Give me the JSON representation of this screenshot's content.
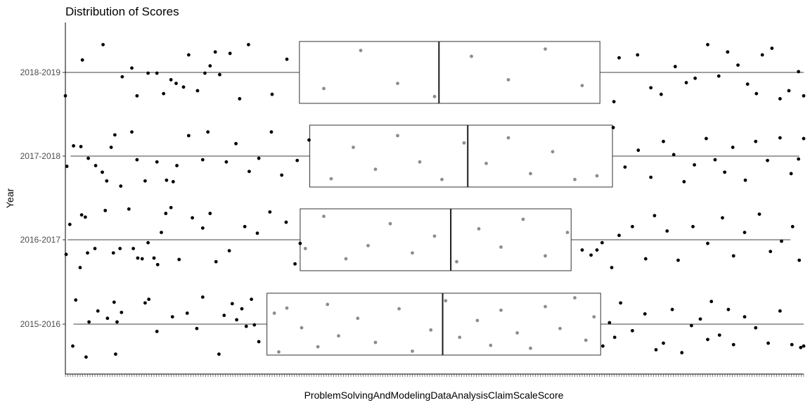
{
  "chart_data": {
    "type": "boxplot",
    "title": "Distribution of Scores",
    "xlabel": "ProblemSolvingAndModelingDataAnalysisClaimScaleScore",
    "ylabel": "Year",
    "orientation": "horizontal",
    "grid": false,
    "x_ticks_unreadable": true,
    "categories": [
      "2015-2016",
      "2016-2017",
      "2017-2018",
      "2018-2019"
    ],
    "x_range": [
      0,
      1000
    ],
    "boxes": [
      {
        "category": "2015-2016",
        "whisker_low": 11,
        "q1": 273,
        "median": 511,
        "q3": 725,
        "whisker_high": 1000
      },
      {
        "category": "2016-2017",
        "whisker_low": 3,
        "q1": 318,
        "median": 522,
        "q3": 685,
        "whisker_high": 982
      },
      {
        "category": "2017-2018",
        "whisker_low": 7,
        "q1": 331,
        "median": 545,
        "q3": 741,
        "whisker_high": 994
      },
      {
        "category": "2018-2019",
        "whisker_low": 0,
        "q1": 317,
        "median": 506,
        "q3": 724,
        "whisker_high": 1000
      }
    ],
    "points": [
      {
        "category": "2015-2016",
        "x": [
          10,
          14,
          28,
          32,
          44,
          57,
          66,
          68,
          70,
          76,
          108,
          113,
          124,
          145,
          165,
          178,
          186,
          208,
          215,
          226,
          232,
          239,
          245,
          252,
          256,
          262,
          283,
          289,
          300,
          320,
          342,
          355,
          370,
          396,
          420,
          452,
          470,
          495,
          515,
          534,
          558,
          576,
          590,
          612,
          630,
          650,
          670,
          690,
          705,
          716,
          728,
          737,
          744,
          752,
          768,
          785,
          800,
          810,
          822,
          835,
          848,
          860,
          870,
          875,
          886,
          898,
          905,
          920,
          935,
          952,
          968,
          984,
          996,
          1000
        ],
        "dy": [
          0.3,
          -0.33,
          0.45,
          -0.03,
          -0.18,
          -0.08,
          -0.3,
          0.41,
          -0.03,
          -0.16,
          -0.29,
          -0.34,
          0.1,
          -0.1,
          -0.15,
          0.06,
          -0.37,
          0.41,
          -0.12,
          -0.28,
          -0.06,
          -0.21,
          0.03,
          -0.34,
          0.01,
          0.24,
          -0.15,
          0.38,
          -0.22,
          0.05,
          0.31,
          -0.27,
          0.16,
          -0.08,
          0.25,
          -0.21,
          0.37,
          0.08,
          -0.32,
          0.18,
          -0.05,
          0.29,
          -0.19,
          0.12,
          0.33,
          -0.24,
          0.06,
          -0.36,
          0.22,
          -0.1,
          0.3,
          -0.02,
          0.18,
          -0.29,
          0.09,
          -0.14,
          0.35,
          0.26,
          -0.2,
          0.39,
          0.02,
          -0.07,
          0.21,
          -0.31,
          0.15,
          -0.2,
          0.28,
          -0.1,
          0.05,
          0.26,
          -0.18,
          0.28,
          0.32,
          0.3
        ]
      },
      {
        "category": "2016-2017",
        "x": [
          1,
          6,
          20,
          22,
          27,
          30,
          40,
          54,
          65,
          74,
          86,
          92,
          98,
          104,
          112,
          120,
          125,
          130,
          136,
          143,
          154,
          172,
          186,
          196,
          204,
          222,
          243,
          260,
          277,
          299,
          311,
          318,
          325,
          350,
          380,
          410,
          440,
          470,
          500,
          530,
          560,
          590,
          620,
          650,
          680,
          700,
          712,
          720,
          727,
          740,
          750,
          768,
          786,
          798,
          815,
          830,
          850,
          870,
          890,
          905,
          920,
          940,
          955,
          970,
          985,
          994
        ],
        "dy": [
          0.2,
          -0.21,
          0.38,
          -0.34,
          -0.31,
          0.18,
          0.12,
          -0.4,
          0.18,
          0.12,
          -0.42,
          0.12,
          0.25,
          0.26,
          0.04,
          0.25,
          0.34,
          -0.1,
          -0.36,
          -0.44,
          0.27,
          -0.3,
          -0.16,
          -0.36,
          0.3,
          0.15,
          -0.18,
          -0.09,
          -0.38,
          -0.24,
          0.33,
          0.05,
          0.12,
          -0.32,
          0.26,
          0.08,
          -0.22,
          0.18,
          -0.05,
          0.3,
          -0.15,
          0.1,
          -0.28,
          0.22,
          -0.1,
          0.14,
          0.21,
          0.14,
          0.04,
          0.38,
          -0.06,
          -0.18,
          0.26,
          -0.33,
          -0.12,
          0.28,
          -0.18,
          0.05,
          -0.3,
          0.22,
          -0.1,
          -0.35,
          0.16,
          0.02,
          -0.18,
          0.28
        ]
      },
      {
        "category": "2017-2018",
        "x": [
          2,
          11,
          21,
          31,
          41,
          50,
          56,
          62,
          67,
          75,
          90,
          97,
          108,
          124,
          137,
          146,
          151,
          167,
          186,
          193,
          218,
          231,
          249,
          262,
          279,
          293,
          314,
          330,
          360,
          390,
          420,
          450,
          480,
          510,
          540,
          570,
          600,
          630,
          660,
          690,
          720,
          742,
          758,
          776,
          793,
          810,
          824,
          838,
          852,
          868,
          880,
          893,
          904,
          921,
          935,
          951,
          968,
          983,
          993,
          1000
        ],
        "dy": [
          0.14,
          -0.14,
          -0.13,
          0.03,
          0.13,
          0.22,
          0.34,
          -0.12,
          -0.29,
          0.41,
          -0.33,
          0.05,
          0.34,
          0.08,
          0.33,
          0.35,
          0.13,
          -0.28,
          0.05,
          -0.33,
          0.08,
          -0.17,
          0.21,
          0.03,
          -0.33,
          0.26,
          0.06,
          -0.22,
          0.31,
          -0.12,
          0.18,
          -0.28,
          0.08,
          0.32,
          -0.18,
          0.1,
          -0.25,
          0.24,
          -0.06,
          0.32,
          0.27,
          -0.39,
          0.15,
          -0.08,
          0.29,
          -0.2,
          -0.02,
          0.35,
          0.12,
          -0.24,
          0.05,
          0.22,
          -0.12,
          0.33,
          -0.2,
          0.06,
          -0.25,
          0.24,
          0.04,
          -0.24
        ]
      },
      {
        "category": "2018-2019",
        "x": [
          0,
          23,
          51,
          77,
          90,
          97,
          112,
          124,
          133,
          143,
          150,
          160,
          167,
          179,
          189,
          196,
          203,
          209,
          223,
          236,
          248,
          280,
          300,
          350,
          400,
          450,
          500,
          550,
          600,
          650,
          700,
          743,
          750,
          775,
          793,
          807,
          826,
          841,
          853,
          870,
          885,
          897,
          911,
          924,
          936,
          944,
          957,
          968,
          980,
          993,
          1000
        ],
        "dy": [
          0.32,
          -0.17,
          -0.38,
          0.06,
          -0.06,
          0.32,
          0.01,
          0.01,
          0.29,
          0.1,
          0.15,
          0.2,
          -0.24,
          0.25,
          0.01,
          -0.09,
          -0.28,
          0.03,
          -0.26,
          0.36,
          -0.38,
          0.3,
          -0.18,
          0.22,
          -0.3,
          0.15,
          0.33,
          -0.22,
          0.1,
          -0.32,
          0.18,
          0.4,
          -0.2,
          -0.24,
          0.21,
          0.3,
          -0.08,
          0.14,
          0.08,
          -0.38,
          0.05,
          -0.28,
          -0.1,
          0.16,
          0.29,
          -0.24,
          -0.33,
          0.36,
          0.25,
          -0.01,
          0.32
        ]
      }
    ],
    "colors": {
      "points_outside_box": "#000000",
      "points_inside_box": "#8c8c8c",
      "box_outline": "#333333",
      "median_line": "#1a1a1a",
      "axis": "#000000"
    }
  }
}
